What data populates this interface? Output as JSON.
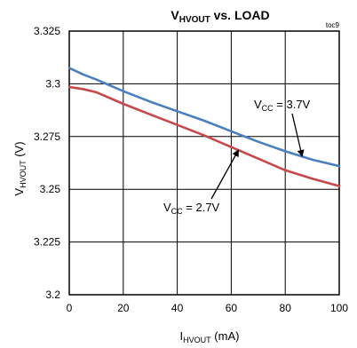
{
  "chart_data": {
    "type": "line",
    "title": {
      "main": "V",
      "sub": "HVOUT",
      "rest": " vs. LOAD"
    },
    "code": "toc9",
    "xlabel": {
      "main": "I",
      "sub": "HVOUT",
      "rest": " (mA)"
    },
    "ylabel": {
      "main": "V",
      "sub": "HVOUT",
      "rest": " (V)"
    },
    "xlim": [
      0,
      100
    ],
    "ylim": [
      3.2,
      3.325
    ],
    "x_ticks": [
      "0",
      "20",
      "40",
      "60",
      "80",
      "100"
    ],
    "y_ticks": [
      "3.2",
      "3.225",
      "3.25",
      "3.275",
      "3.3",
      "3.325"
    ],
    "grid": true,
    "series": [
      {
        "name": {
          "main": "V",
          "sub": "CC",
          "rest": " = 3.7V"
        },
        "color": "#4a7fc0",
        "x": [
          0,
          5,
          10,
          20,
          30,
          40,
          50,
          60,
          70,
          80,
          90,
          100
        ],
        "y": [
          3.3075,
          3.3045,
          3.302,
          3.2965,
          3.2915,
          3.287,
          3.2825,
          3.2775,
          3.2725,
          3.268,
          3.264,
          3.261
        ]
      },
      {
        "name": {
          "main": "V",
          "sub": "CC",
          "rest": " = 2.7V"
        },
        "color": "#c8484a",
        "x": [
          0,
          5,
          10,
          20,
          30,
          40,
          50,
          60,
          70,
          80,
          90,
          100
        ],
        "y": [
          3.2985,
          3.2975,
          3.296,
          3.2905,
          3.2855,
          3.2805,
          3.2755,
          3.27,
          3.2645,
          3.259,
          3.255,
          3.2515
        ]
      }
    ]
  }
}
